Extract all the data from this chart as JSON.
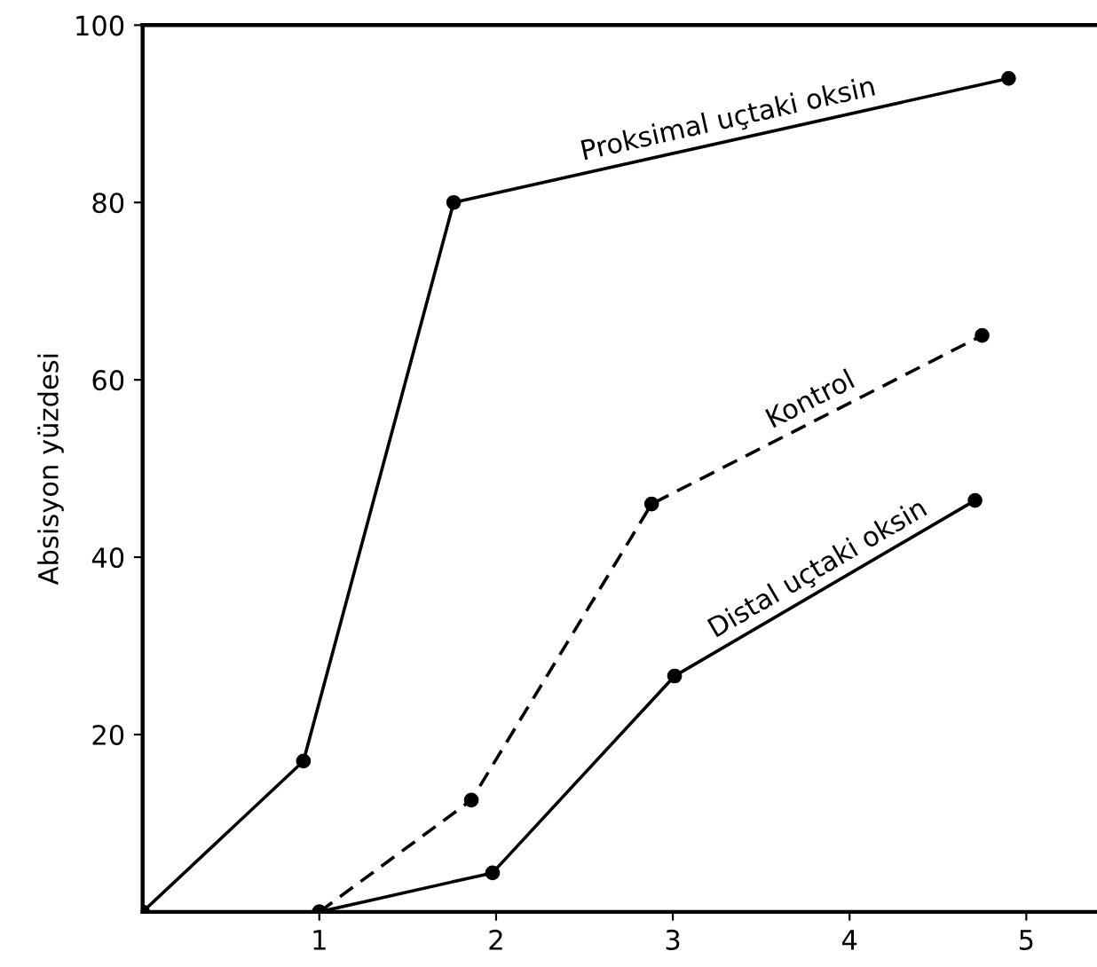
{
  "chart_data": {
    "type": "line",
    "ylabel": "Absisyon yüzdesi",
    "xlim": [
      0,
      5.4
    ],
    "ylim": [
      0,
      100
    ],
    "xticks": [
      1,
      2,
      3,
      4,
      5
    ],
    "yticks": [
      20,
      40,
      60,
      80,
      100
    ],
    "grid": false,
    "marker": "circle",
    "series": [
      {
        "name": "Proksimal uçtaki oksin",
        "color": "#000000",
        "x": [
          0,
          0.91,
          1.76,
          4.9
        ],
        "values": [
          0,
          17,
          80,
          94
        ],
        "line_style": "solid"
      },
      {
        "name": "Kontrol",
        "color": "#000000",
        "x": [
          1,
          1.86,
          2.88,
          4.75
        ],
        "values": [
          0,
          12.6,
          46,
          65
        ],
        "line_style": "dashed"
      },
      {
        "name": "Distal uçtaki oksin",
        "color": "#000000",
        "x": [
          1,
          1.98,
          3.01,
          4.71
        ],
        "values": [
          0,
          4.4,
          26.6,
          46.4
        ],
        "line_style": "solid"
      }
    ]
  }
}
